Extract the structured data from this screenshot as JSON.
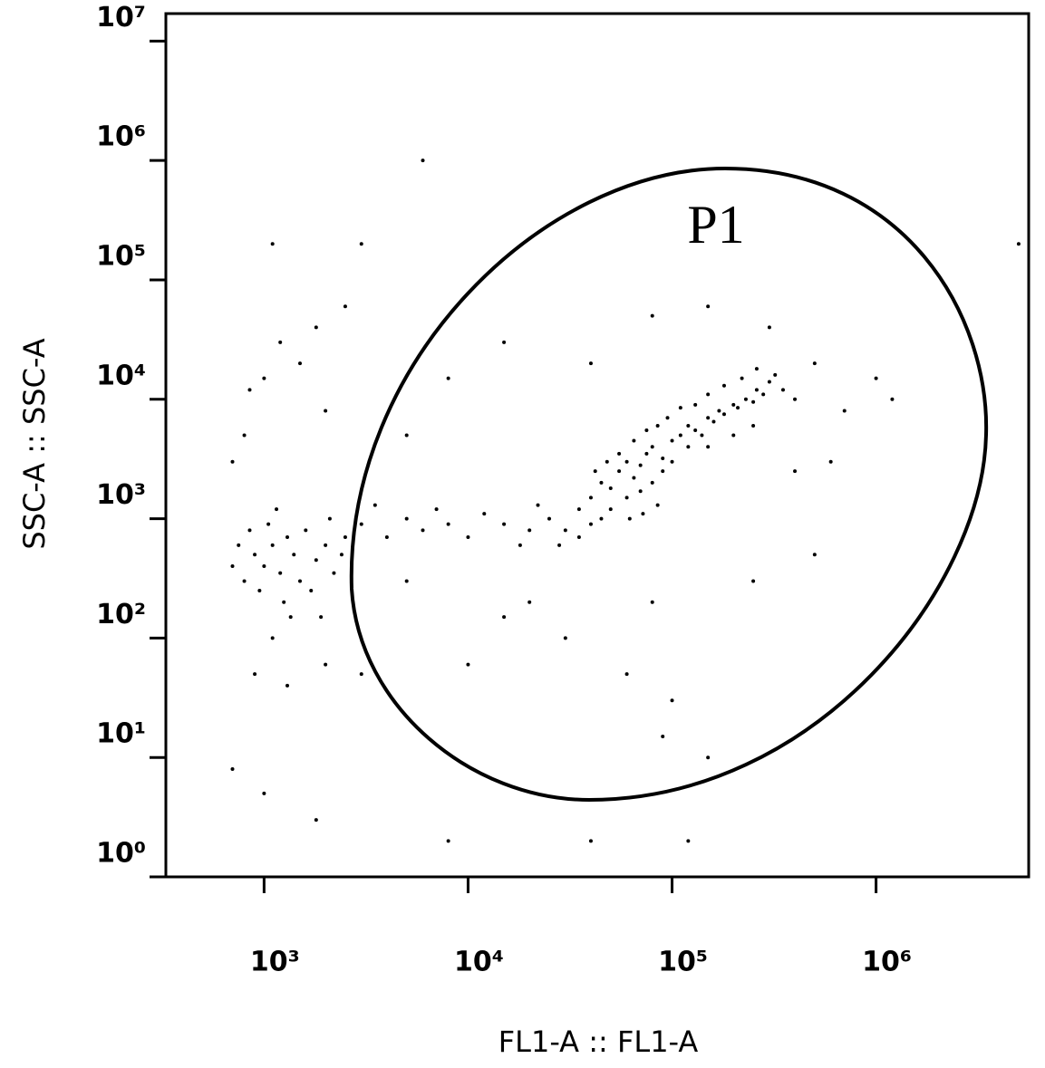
{
  "chart_data": {
    "type": "scatter",
    "xlabel": "FL1-A :: FL1-A",
    "ylabel": "SSC-A :: SSC-A",
    "xscale": "log",
    "yscale": "log",
    "xlim": [
      330,
      5600000
    ],
    "ylim": [
      1,
      17000000
    ],
    "xticks": [
      {
        "value": 1000,
        "label": "10³"
      },
      {
        "value": 10000,
        "label": "10⁴"
      },
      {
        "value": 100000,
        "label": "10⁵"
      },
      {
        "value": 1000000,
        "label": "10⁶"
      }
    ],
    "yticks": [
      {
        "value": 1,
        "label": "10⁰"
      },
      {
        "value": 10,
        "label": "10¹"
      },
      {
        "value": 100,
        "label": "10²"
      },
      {
        "value": 1000,
        "label": "10³"
      },
      {
        "value": 10000,
        "label": "10⁴"
      },
      {
        "value": 100000,
        "label": "10⁵"
      },
      {
        "value": 1000000,
        "label": "10⁶"
      },
      {
        "value": 10000000,
        "label": "10⁷"
      }
    ],
    "color": "#000000",
    "annotations": [
      {
        "text": "P1"
      }
    ],
    "x": [
      30000,
      35000,
      40000,
      45000,
      50000,
      55000,
      60000,
      65000,
      70000,
      75000,
      80000,
      90000,
      100000,
      110000,
      120000,
      130000,
      150000,
      170000,
      200000,
      230000,
      260000,
      300000,
      50000,
      60000,
      70000,
      80000,
      40000,
      35000,
      45000,
      90000,
      100000,
      120000,
      140000,
      160000,
      180000,
      210000,
      250000,
      280000,
      320000,
      350000,
      400000,
      150000,
      200000,
      250000,
      55000,
      65000,
      75000,
      85000,
      95000,
      110000,
      130000,
      150000,
      180000,
      220000,
      260000,
      42000,
      48000,
      62000,
      72000,
      85000,
      28000,
      25000,
      20000,
      22000,
      18000,
      15000,
      12000,
      10000,
      8000,
      7000,
      6000,
      5000,
      4000,
      3500,
      3000,
      900,
      1000,
      1100,
      1200,
      1300,
      1400,
      1500,
      1600,
      1800,
      2000,
      2200,
      2500,
      800,
      750,
      950,
      1050,
      1250,
      1700,
      2100,
      2400,
      850,
      1150,
      1350,
      700,
      1900,
      1200,
      1500,
      2000,
      800,
      1000,
      2500,
      1800,
      1100,
      900,
      1300,
      2000,
      6000,
      3000,
      1100,
      700,
      1000,
      1800,
      8000,
      40000,
      120000,
      90000,
      60000,
      30000,
      20000,
      80000,
      100000,
      150000,
      5000,
      8000,
      15000,
      40000,
      80000,
      150000,
      300000,
      500000,
      700000,
      600000,
      400000,
      1000000,
      1200000,
      5000000,
      500000,
      250000,
      15000,
      10000,
      5000,
      3000,
      700,
      850
    ],
    "y": [
      800,
      1200,
      1500,
      2000,
      1800,
      2500,
      3000,
      2200,
      2800,
      3500,
      4000,
      3200,
      4500,
      5000,
      6000,
      5500,
      7000,
      8000,
      9000,
      10000,
      12000,
      14000,
      1200,
      1500,
      1700,
      2000,
      900,
      700,
      1000,
      2500,
      3000,
      4000,
      5000,
      6500,
      7500,
      8500,
      9500,
      11000,
      16000,
      12000,
      10000,
      4000,
      5000,
      6000,
      3500,
      4500,
      5500,
      6000,
      7000,
      8500,
      9000,
      11000,
      13000,
      15000,
      18000,
      2500,
      3000,
      1000,
      1100,
      1300,
      600,
      1000,
      800,
      1300,
      600,
      900,
      1100,
      700,
      900,
      1200,
      800,
      1000,
      700,
      1300,
      900,
      500,
      400,
      600,
      350,
      700,
      500,
      300,
      800,
      450,
      600,
      350,
      700,
      300,
      600,
      250,
      900,
      200,
      250,
      1000,
      500,
      800,
      1200,
      150,
      400,
      150,
      30000,
      20000,
      8000,
      5000,
      15000,
      60000,
      40000,
      100,
      50,
      40,
      60,
      1000000,
      200000,
      200000,
      8,
      5,
      3,
      2,
      2,
      2,
      15,
      50,
      100,
      200,
      200,
      30,
      10,
      5000,
      15000,
      30000,
      20000,
      50000,
      60000,
      40000,
      20000,
      8000,
      3000,
      2500,
      15000,
      10000,
      200000,
      500,
      300,
      150,
      60,
      300,
      50,
      3000,
      12000
    ]
  }
}
